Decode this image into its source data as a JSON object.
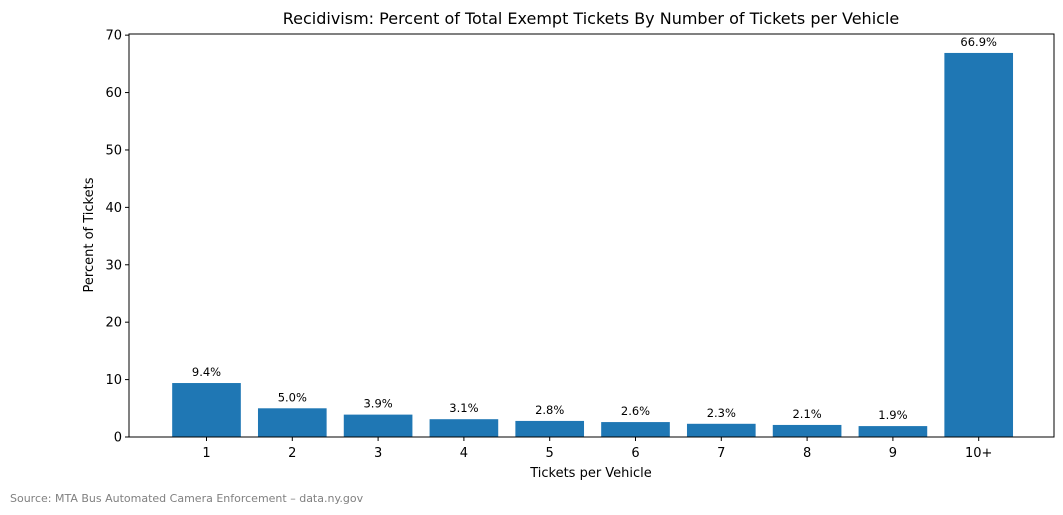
{
  "chart_data": {
    "type": "bar",
    "title": "Recidivism: Percent of Total Exempt Tickets By Number of Tickets per Vehicle",
    "xlabel": "Tickets per Vehicle",
    "ylabel": "Percent of Tickets",
    "categories": [
      "1",
      "2",
      "3",
      "4",
      "5",
      "6",
      "7",
      "8",
      "9",
      "10+"
    ],
    "values": [
      9.4,
      5.0,
      3.9,
      3.1,
      2.8,
      2.6,
      2.3,
      2.1,
      1.9,
      66.9
    ],
    "data_labels": [
      "9.4%",
      "5.0%",
      "3.9%",
      "3.1%",
      "2.8%",
      "2.6%",
      "2.3%",
      "2.1%",
      "1.9%",
      "66.9%"
    ],
    "ylim": [
      0,
      70.2
    ],
    "yticks": [
      0,
      10,
      20,
      30,
      40,
      50,
      60,
      70
    ],
    "grid": false,
    "bar_color": "#1f77b4"
  },
  "source_note": "Source: MTA Bus Automated Camera Enforcement – data.ny.gov"
}
